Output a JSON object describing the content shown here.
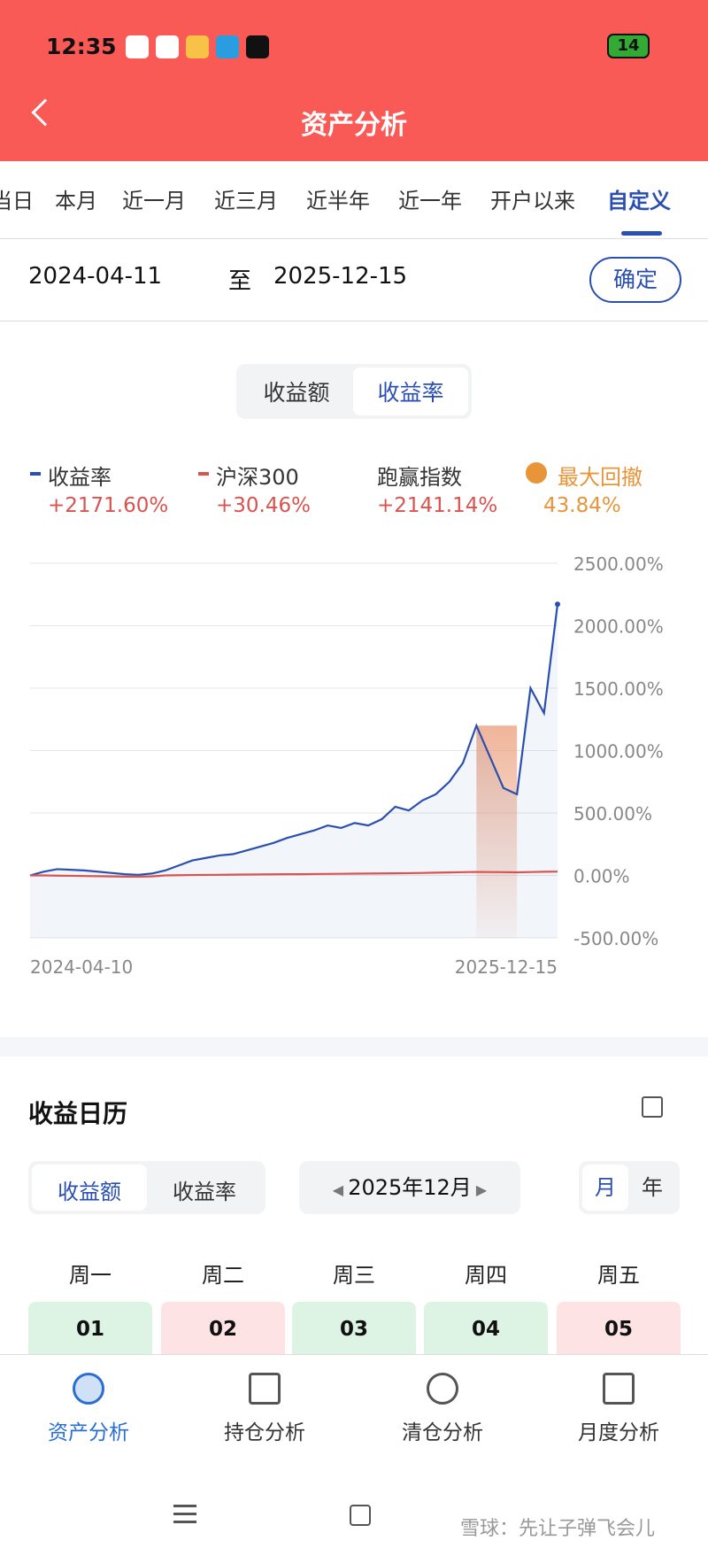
{
  "status": {
    "time": "12:35",
    "battery": "14"
  },
  "header": {
    "title": "资产分析"
  },
  "tabs": [
    "当日",
    "本月",
    "近一月",
    "近三月",
    "近半年",
    "近一年",
    "开户以来",
    "自定义"
  ],
  "date_range": {
    "start": "2024-04-11",
    "sep": "至",
    "end": "2025-12-15",
    "confirm": "确定"
  },
  "toggle": [
    "收益额",
    "收益率"
  ],
  "legend": [
    {
      "name": "收益率",
      "value": "+2171.60%"
    },
    {
      "name": "沪深300",
      "value": "+30.46%"
    },
    {
      "name": "跑赢指数",
      "value": "+2141.14%"
    },
    {
      "name": "最大回撤",
      "value": "43.84%"
    }
  ],
  "chart_data": {
    "type": "line",
    "categories": [
      "2024-04-10",
      null,
      null,
      null,
      null,
      null,
      null,
      null,
      null,
      null,
      null,
      null,
      null,
      null,
      null,
      null,
      null,
      null,
      null,
      null,
      null,
      null,
      null,
      null,
      null,
      null,
      null,
      null,
      null,
      null,
      null,
      null,
      null,
      null,
      null,
      null,
      null,
      null,
      null,
      "2025-12-15"
    ],
    "series": [
      {
        "name": "收益率",
        "color": "#2a4fb0",
        "values": [
          0,
          30,
          50,
          45,
          40,
          30,
          20,
          10,
          5,
          15,
          40,
          80,
          120,
          140,
          160,
          170,
          200,
          230,
          260,
          300,
          330,
          360,
          400,
          380,
          420,
          400,
          450,
          550,
          520,
          600,
          650,
          750,
          900,
          1200,
          950,
          700,
          650,
          1500,
          1300,
          2171.6
        ]
      },
      {
        "name": "沪深300",
        "color": "#d9534f",
        "values": [
          0,
          0,
          -2,
          -3,
          -5,
          -6,
          -8,
          -10,
          -10,
          -8,
          0,
          2,
          3,
          4,
          5,
          6,
          7,
          8,
          9,
          10,
          10,
          11,
          12,
          13,
          14,
          15,
          16,
          17,
          18,
          20,
          22,
          24,
          26,
          28,
          27,
          26,
          25,
          27,
          29,
          30.46
        ]
      }
    ],
    "ylim": [
      -500,
      2500
    ],
    "yticks": [
      {
        "value": -500,
        "label": "-500.00%"
      },
      {
        "value": 0,
        "label": "0.00%"
      },
      {
        "value": 500,
        "label": "500.00%"
      },
      {
        "value": 1000,
        "label": "1000.00%"
      },
      {
        "value": 1500,
        "label": "1500.00%"
      },
      {
        "value": 2000,
        "label": "2000.00%"
      },
      {
        "value": 2500,
        "label": "2500.00%"
      }
    ],
    "grid": true
  },
  "calendar": {
    "title": "收益日历",
    "toggle": [
      "收益额",
      "收益率"
    ],
    "month": "2025年12月",
    "view": [
      "月",
      "年"
    ],
    "weekdays": [
      "周一",
      "周二",
      "周三",
      "周四",
      "周五"
    ],
    "days": [
      "01",
      "02",
      "03",
      "04",
      "05"
    ]
  },
  "bottom_nav": [
    "资产分析",
    "持仓分析",
    "清仓分析",
    "月度分析"
  ],
  "watermark": "雪球：先让子弹飞会儿"
}
